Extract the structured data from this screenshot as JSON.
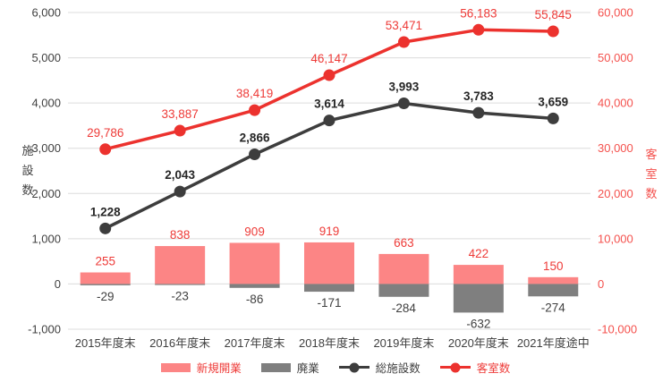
{
  "chart_data": {
    "type": "combo",
    "title": "",
    "categories": [
      "2015年度末",
      "2016年度末",
      "2017年度末",
      "2018年度末",
      "2019年度末",
      "2020年度末",
      "2021年度途中"
    ],
    "series": [
      {
        "key": "new-openings",
        "name": "新規開業",
        "type": "bar",
        "axis": "left",
        "color": "#fc8585",
        "label_color": "#ee3b38",
        "label_bold": false,
        "values": [
          255,
          838,
          909,
          919,
          663,
          422,
          150
        ]
      },
      {
        "key": "closures",
        "name": "廃業",
        "type": "bar",
        "axis": "left",
        "color": "#7f7f7f",
        "label_color": "#404040",
        "label_bold": false,
        "values": [
          -29,
          -23,
          -86,
          -171,
          -284,
          -632,
          -274
        ]
      },
      {
        "key": "total-facilities",
        "name": "総施設数",
        "type": "line",
        "axis": "left",
        "color": "#3d3d3d",
        "label_color": "#262626",
        "label_bold": true,
        "values": [
          1228,
          2043,
          2866,
          3614,
          3993,
          3783,
          3659
        ]
      },
      {
        "key": "room-count",
        "name": "客室数",
        "type": "line",
        "axis": "right",
        "color": "#ec322e",
        "label_color": "#ee3b38",
        "label_bold": false,
        "values": [
          29786,
          33887,
          38419,
          46147,
          53471,
          56183,
          55845
        ]
      }
    ],
    "left_axis": {
      "title": "施設数",
      "min": -1000,
      "max": 6000,
      "step": 1000,
      "tick_color": "#404040"
    },
    "right_axis": {
      "title": "客室数",
      "min": -10000,
      "max": 60000,
      "step": 10000,
      "tick_color": "#f4514d"
    },
    "x_axis": {
      "tick_color": "#404040"
    },
    "grid": true,
    "gridline_color": "#dcdcdc",
    "legend_position": "bottom"
  },
  "legend": {
    "items": [
      {
        "key": "new-openings",
        "label": "新規開業",
        "swatch": "bar",
        "color": "#fc8585",
        "label_color": "#ee3b38"
      },
      {
        "key": "closures",
        "label": "廃業",
        "swatch": "bar",
        "color": "#7f7f7f",
        "label_color": "#404040"
      },
      {
        "key": "total-facilities",
        "label": "総施設数",
        "swatch": "line",
        "color": "#3d3d3d",
        "label_color": "#404040"
      },
      {
        "key": "room-count",
        "label": "客室数",
        "swatch": "line",
        "color": "#ec322e",
        "label_color": "#ee3b38"
      }
    ]
  }
}
